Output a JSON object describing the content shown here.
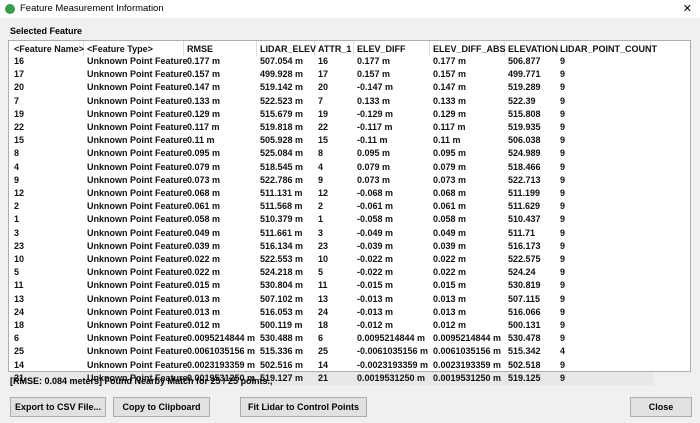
{
  "window": {
    "title": "Feature Measurement Information",
    "close": "✕"
  },
  "section_label": "Selected Feature",
  "table": {
    "columns": [
      "<Feature Name>",
      "<Feature Type>",
      "RMSE",
      "LIDAR_ELEV",
      "ATTR_1",
      "ELEV_DIFF",
      "ELEV_DIFF_ABS",
      "ELEVATION",
      "LIDAR_POINT_COUNT"
    ],
    "rows": [
      [
        "16",
        "Unknown Point Feature",
        "0.177 m",
        "507.054 m",
        "16",
        "0.177 m",
        "0.177 m",
        "506.877",
        "9"
      ],
      [
        "17",
        "Unknown Point Feature",
        "0.157 m",
        "499.928 m",
        "17",
        "0.157 m",
        "0.157 m",
        "499.771",
        "9"
      ],
      [
        "20",
        "Unknown Point Feature",
        "0.147 m",
        "519.142 m",
        "20",
        "-0.147 m",
        "0.147 m",
        "519.289",
        "9"
      ],
      [
        "7",
        "Unknown Point Feature",
        "0.133 m",
        "522.523 m",
        "7",
        "0.133 m",
        "0.133 m",
        "522.39",
        "9"
      ],
      [
        "19",
        "Unknown Point Feature",
        "0.129 m",
        "515.679 m",
        "19",
        "-0.129 m",
        "0.129 m",
        "515.808",
        "9"
      ],
      [
        "22",
        "Unknown Point Feature",
        "0.117 m",
        "519.818 m",
        "22",
        "-0.117 m",
        "0.117 m",
        "519.935",
        "9"
      ],
      [
        "15",
        "Unknown Point Feature",
        "0.11 m",
        "505.928 m",
        "15",
        "-0.11 m",
        "0.11 m",
        "506.038",
        "9"
      ],
      [
        "8",
        "Unknown Point Feature",
        "0.095 m",
        "525.084 m",
        "8",
        "0.095 m",
        "0.095 m",
        "524.989",
        "9"
      ],
      [
        "4",
        "Unknown Point Feature",
        "0.079 m",
        "518.545 m",
        "4",
        "0.079 m",
        "0.079 m",
        "518.466",
        "9"
      ],
      [
        "9",
        "Unknown Point Feature",
        "0.073 m",
        "522.786 m",
        "9",
        "0.073 m",
        "0.073 m",
        "522.713",
        "9"
      ],
      [
        "12",
        "Unknown Point Feature",
        "0.068 m",
        "511.131 m",
        "12",
        "-0.068 m",
        "0.068 m",
        "511.199",
        "9"
      ],
      [
        "2",
        "Unknown Point Feature",
        "0.061 m",
        "511.568 m",
        "2",
        "-0.061 m",
        "0.061 m",
        "511.629",
        "9"
      ],
      [
        "1",
        "Unknown Point Feature",
        "0.058 m",
        "510.379 m",
        "1",
        "-0.058 m",
        "0.058 m",
        "510.437",
        "9"
      ],
      [
        "3",
        "Unknown Point Feature",
        "0.049 m",
        "511.661 m",
        "3",
        "-0.049 m",
        "0.049 m",
        "511.71",
        "9"
      ],
      [
        "23",
        "Unknown Point Feature",
        "0.039 m",
        "516.134 m",
        "23",
        "-0.039 m",
        "0.039 m",
        "516.173",
        "9"
      ],
      [
        "10",
        "Unknown Point Feature",
        "0.022 m",
        "522.553 m",
        "10",
        "-0.022 m",
        "0.022 m",
        "522.575",
        "9"
      ],
      [
        "5",
        "Unknown Point Feature",
        "0.022 m",
        "524.218 m",
        "5",
        "-0.022 m",
        "0.022 m",
        "524.24",
        "9"
      ],
      [
        "11",
        "Unknown Point Feature",
        "0.015 m",
        "530.804 m",
        "11",
        "-0.015 m",
        "0.015 m",
        "530.819",
        "9"
      ],
      [
        "13",
        "Unknown Point Feature",
        "0.013 m",
        "507.102 m",
        "13",
        "-0.013 m",
        "0.013 m",
        "507.115",
        "9"
      ],
      [
        "24",
        "Unknown Point Feature",
        "0.013 m",
        "516.053 m",
        "24",
        "-0.013 m",
        "0.013 m",
        "516.066",
        "9"
      ],
      [
        "18",
        "Unknown Point Feature",
        "0.012 m",
        "500.119 m",
        "18",
        "-0.012 m",
        "0.012 m",
        "500.131",
        "9"
      ],
      [
        "6",
        "Unknown Point Feature",
        "0.0095214844 m",
        "530.488 m",
        "6",
        "0.0095214844 m",
        "0.0095214844 m",
        "530.478",
        "9"
      ],
      [
        "25",
        "Unknown Point Feature",
        "0.0061035156 m",
        "515.336 m",
        "25",
        "-0.0061035156 m",
        "0.0061035156 m",
        "515.342",
        "4"
      ],
      [
        "14",
        "Unknown Point Feature",
        "0.0023193359 m",
        "502.516 m",
        "14",
        "-0.0023193359 m",
        "0.0023193359 m",
        "502.518",
        "9"
      ],
      [
        "21",
        "Unknown Point Feature",
        "0.0019531250 m",
        "519.127 m",
        "21",
        "0.0019531250 m",
        "0.0019531250 m",
        "519.125",
        "9"
      ]
    ]
  },
  "status": "[RMSE: 0.084 meters] Found Nearby Match for 25 / 25 points.,",
  "buttons": [
    "Export to CSV File...",
    "Copy to Clipboard",
    "Fit Lidar to Control Points",
    "Close"
  ]
}
